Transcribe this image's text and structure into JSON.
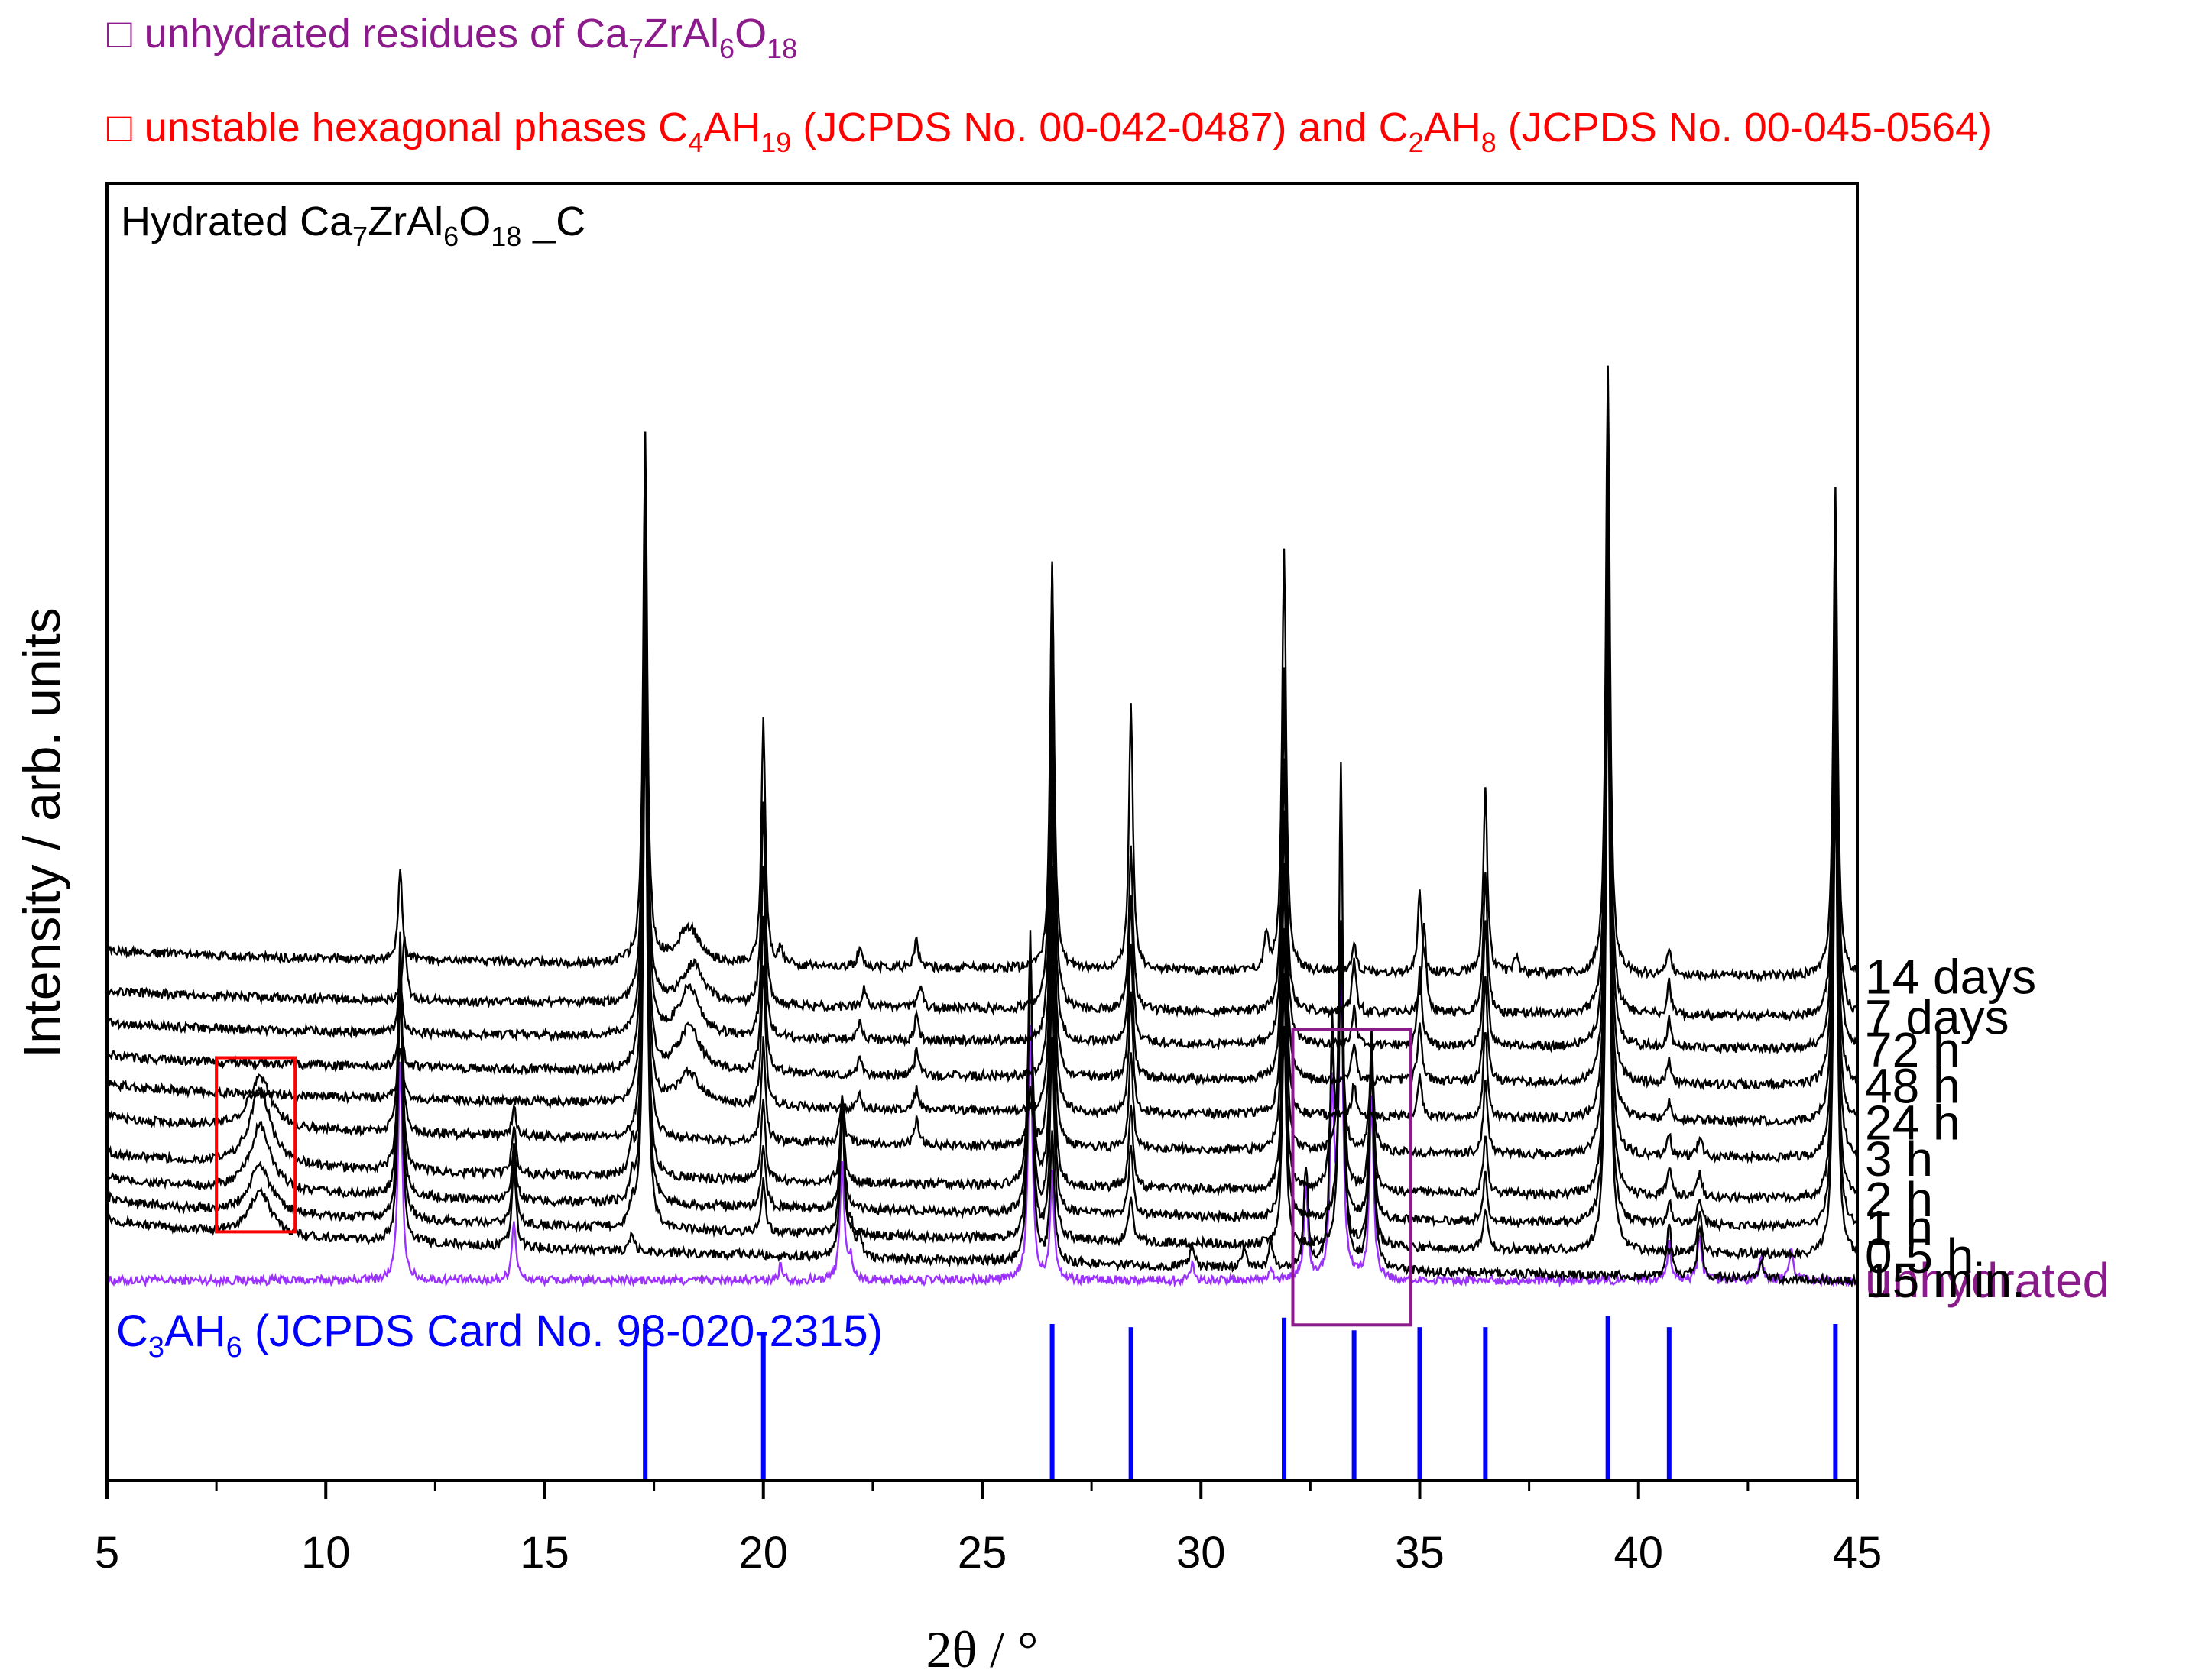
{
  "legend": {
    "purple": {
      "marker": "□",
      "prefix": "unhydrated residues of Ca",
      "sub1": "7",
      "mid1": "ZrAl",
      "sub2": "6",
      "mid2": "O",
      "sub3": "18",
      "color": "#8b1a8b"
    },
    "red": {
      "marker": "□",
      "prefix": "unstable hexagonal phases C",
      "sub1": "4",
      "mid1": "AH",
      "sub2": "19",
      "mid2": " (JCPDS No. 00-042-0487) and C",
      "sub3": "2",
      "mid3": "AH",
      "sub4": "8",
      "suffix": " (JCPDS No. 00-045-0564)",
      "color": "#ff0000"
    }
  },
  "chart_data": {
    "type": "line",
    "title": {
      "prefix": "Hydrated Ca",
      "sub1": "7",
      "mid1": "ZrAl",
      "sub2": "6",
      "mid2": "O",
      "sub3": "18",
      "suffix": " _C"
    },
    "xlabel": "2θ / °",
    "ylabel": "Intensity / arb. units",
    "xlim": [
      5,
      45
    ],
    "xticks": [
      "5",
      "10",
      "15",
      "20",
      "25",
      "30",
      "35",
      "40",
      "45"
    ],
    "reference": {
      "label": {
        "prefix": "C",
        "sub1": "3",
        "mid1": "AH",
        "sub2": "6",
        "suffix": " (JCPDS Card No. 98-020-2315)"
      },
      "color": "#0000ff",
      "lines": [
        {
          "x": 17.3,
          "h": 1.0
        },
        {
          "x": 20.0,
          "h": 0.95
        },
        {
          "x": 26.6,
          "h": 1.0
        },
        {
          "x": 28.4,
          "h": 0.98
        },
        {
          "x": 31.9,
          "h": 1.04
        },
        {
          "x": 33.5,
          "h": 0.96
        },
        {
          "x": 35.0,
          "h": 0.98
        },
        {
          "x": 36.5,
          "h": 0.98
        },
        {
          "x": 39.3,
          "h": 1.05
        },
        {
          "x": 40.7,
          "h": 0.98
        },
        {
          "x": 44.5,
          "h": 1.0
        }
      ]
    },
    "series": [
      {
        "name": "unhydrated",
        "color": "#9b30ff",
        "baseline": [
          0.0,
          0.0
        ],
        "peaks": [
          {
            "x": 11.7,
            "h": 5.5
          },
          {
            "x": 14.3,
            "h": 1.5
          },
          {
            "x": 20.4,
            "h": 0.4
          },
          {
            "x": 21.8,
            "h": 3.0
          },
          {
            "x": 22.0,
            "h": 0.5
          },
          {
            "x": 26.1,
            "h": 6.3
          },
          {
            "x": 26.6,
            "h": 2.6
          },
          {
            "x": 29.8,
            "h": 0.4
          },
          {
            "x": 31.6,
            "h": 0.3
          },
          {
            "x": 32.4,
            "h": 2.2
          },
          {
            "x": 33.0,
            "h": 4.5
          },
          {
            "x": 33.2,
            "h": 7.5
          },
          {
            "x": 33.9,
            "h": 4.4
          },
          {
            "x": 40.7,
            "h": 0.9
          },
          {
            "x": 41.4,
            "h": 1.1
          },
          {
            "x": 42.8,
            "h": 0.6
          },
          {
            "x": 43.5,
            "h": 0.8
          }
        ]
      },
      {
        "name": "15 min.",
        "color": "#000000",
        "baseline": [
          1.6,
          0.0
        ],
        "peaks": [
          {
            "x": 8.5,
            "h": 1.1
          },
          {
            "x": 11.7,
            "h": 6.5
          },
          {
            "x": 14.3,
            "h": 2.0
          },
          {
            "x": 17.0,
            "h": 0.4
          },
          {
            "x": 21.8,
            "h": 3.8
          },
          {
            "x": 22.0,
            "h": 0.8
          },
          {
            "x": 22.2,
            "h": 0.6
          },
          {
            "x": 26.1,
            "h": 8.0
          },
          {
            "x": 26.6,
            "h": 3.2
          },
          {
            "x": 29.8,
            "h": 0.6
          },
          {
            "x": 31.0,
            "h": 0.5
          },
          {
            "x": 31.6,
            "h": 0.6
          },
          {
            "x": 32.4,
            "h": 2.5
          },
          {
            "x": 33.0,
            "h": 5.5
          },
          {
            "x": 33.2,
            "h": 12.0
          },
          {
            "x": 33.9,
            "h": 6.0
          },
          {
            "x": 40.7,
            "h": 1.4
          },
          {
            "x": 41.4,
            "h": 1.3
          },
          {
            "x": 42.8,
            "h": 0.5
          }
        ]
      },
      {
        "name": "0.5 h",
        "color": "#000000",
        "baseline": [
          2.1,
          0.6
        ],
        "peaks": [
          {
            "x": 8.5,
            "h": 1.2
          },
          {
            "x": 11.7,
            "h": 7.0
          },
          {
            "x": 14.3,
            "h": 1.8
          },
          {
            "x": 17.0,
            "h": 0.5
          },
          {
            "x": 17.3,
            "h": 13.0
          },
          {
            "x": 20.0,
            "h": 1.3
          },
          {
            "x": 21.8,
            "h": 3.3
          },
          {
            "x": 26.1,
            "h": 7.5
          },
          {
            "x": 26.6,
            "h": 5.0
          },
          {
            "x": 28.4,
            "h": 1.2
          },
          {
            "x": 31.9,
            "h": 5.5
          },
          {
            "x": 33.2,
            "h": 8.0
          },
          {
            "x": 33.9,
            "h": 4.5
          },
          {
            "x": 36.5,
            "h": 1.0
          },
          {
            "x": 39.3,
            "h": 15.0
          },
          {
            "x": 41.4,
            "h": 1.0
          },
          {
            "x": 44.5,
            "h": 12.0
          }
        ]
      },
      {
        "name": "1 h",
        "color": "#000000",
        "baseline": [
          2.6,
          1.3
        ],
        "peaks": [
          {
            "x": 8.5,
            "h": 1.6
          },
          {
            "x": 11.7,
            "h": 6.5
          },
          {
            "x": 14.3,
            "h": 1.5
          },
          {
            "x": 17.0,
            "h": 0.6
          },
          {
            "x": 17.3,
            "h": 13.0
          },
          {
            "x": 20.0,
            "h": 1.6
          },
          {
            "x": 21.8,
            "h": 2.5
          },
          {
            "x": 26.1,
            "h": 6.5
          },
          {
            "x": 26.6,
            "h": 6.0
          },
          {
            "x": 28.4,
            "h": 1.8
          },
          {
            "x": 31.9,
            "h": 6.0
          },
          {
            "x": 33.2,
            "h": 7.0
          },
          {
            "x": 33.9,
            "h": 4.0
          },
          {
            "x": 36.5,
            "h": 1.2
          },
          {
            "x": 39.3,
            "h": 15.0
          },
          {
            "x": 40.7,
            "h": 0.6
          },
          {
            "x": 41.4,
            "h": 0.7
          },
          {
            "x": 44.5,
            "h": 12.0
          }
        ]
      },
      {
        "name": "2 h",
        "color": "#000000",
        "baseline": [
          3.2,
          2.0
        ],
        "peaks": [
          {
            "x": 8.5,
            "h": 1.9
          },
          {
            "x": 11.7,
            "h": 5.5
          },
          {
            "x": 14.3,
            "h": 1.2
          },
          {
            "x": 17.0,
            "h": 0.7
          },
          {
            "x": 17.3,
            "h": 13.0
          },
          {
            "x": 20.0,
            "h": 2.0
          },
          {
            "x": 21.8,
            "h": 1.9
          },
          {
            "x": 26.1,
            "h": 6.0
          },
          {
            "x": 26.6,
            "h": 6.5
          },
          {
            "x": 28.4,
            "h": 2.1
          },
          {
            "x": 31.9,
            "h": 6.5
          },
          {
            "x": 33.0,
            "h": 3.0
          },
          {
            "x": 33.2,
            "h": 6.5
          },
          {
            "x": 33.9,
            "h": 3.5
          },
          {
            "x": 36.5,
            "h": 1.5
          },
          {
            "x": 39.3,
            "h": 15.0
          },
          {
            "x": 40.7,
            "h": 0.7
          },
          {
            "x": 41.4,
            "h": 0.6
          },
          {
            "x": 44.5,
            "h": 12.0
          }
        ]
      },
      {
        "name": "3 h",
        "color": "#000000",
        "baseline": [
          4.1,
          3.0
        ],
        "peaks": [
          {
            "x": 8.5,
            "h": 1.3
          },
          {
            "x": 11.7,
            "h": 4.3
          },
          {
            "x": 14.3,
            "h": 0.7
          },
          {
            "x": 17.3,
            "h": 13.0
          },
          {
            "x": 20.0,
            "h": 2.5
          },
          {
            "x": 21.8,
            "h": 1.2
          },
          {
            "x": 23.5,
            "h": 0.6
          },
          {
            "x": 26.1,
            "h": 1.5
          },
          {
            "x": 26.6,
            "h": 7.0
          },
          {
            "x": 28.4,
            "h": 2.4
          },
          {
            "x": 31.9,
            "h": 7.0
          },
          {
            "x": 33.2,
            "h": 5.0
          },
          {
            "x": 33.9,
            "h": 2.5
          },
          {
            "x": 36.5,
            "h": 1.8
          },
          {
            "x": 39.3,
            "h": 15.0
          },
          {
            "x": 40.7,
            "h": 0.5
          },
          {
            "x": 41.4,
            "h": 0.5
          },
          {
            "x": 44.5,
            "h": 12.0
          }
        ]
      },
      {
        "name": "24 h",
        "color": "#000000",
        "baseline": [
          4.9,
          3.9
        ],
        "peaks": [
          {
            "x": 11.7,
            "h": 1.3
          },
          {
            "x": 17.3,
            "h": 13.0
          },
          {
            "x": 18.3,
            "h": 0.8
          },
          {
            "x": 20.0,
            "h": 3.5
          },
          {
            "x": 22.2,
            "h": 0.4
          },
          {
            "x": 23.5,
            "h": 0.5
          },
          {
            "x": 26.6,
            "h": 8.0
          },
          {
            "x": 28.4,
            "h": 3.0
          },
          {
            "x": 31.9,
            "h": 7.5
          },
          {
            "x": 33.5,
            "h": 0.8
          },
          {
            "x": 35.0,
            "h": 1.0
          },
          {
            "x": 36.5,
            "h": 2.2
          },
          {
            "x": 39.3,
            "h": 15.0
          },
          {
            "x": 40.7,
            "h": 0.5
          },
          {
            "x": 44.5,
            "h": 12.0
          }
        ]
      },
      {
        "name": "48 h",
        "color": "#000000",
        "baseline": [
          5.6,
          4.8
        ],
        "peaks": [
          {
            "x": 11.7,
            "h": 1.4
          },
          {
            "x": 17.3,
            "h": 13.0
          },
          {
            "x": 18.3,
            "h": 1.1
          },
          {
            "x": 20.0,
            "h": 3.8
          },
          {
            "x": 22.2,
            "h": 0.4
          },
          {
            "x": 23.5,
            "h": 0.6
          },
          {
            "x": 26.6,
            "h": 8.5
          },
          {
            "x": 28.4,
            "h": 3.3
          },
          {
            "x": 31.9,
            "h": 8.0
          },
          {
            "x": 33.5,
            "h": 1.0
          },
          {
            "x": 35.0,
            "h": 1.5
          },
          {
            "x": 36.5,
            "h": 2.6
          },
          {
            "x": 39.3,
            "h": 15.0
          },
          {
            "x": 40.7,
            "h": 0.6
          },
          {
            "x": 44.5,
            "h": 12.0
          }
        ]
      },
      {
        "name": "72 h",
        "color": "#000000",
        "baseline": [
          6.4,
          5.7
        ],
        "peaks": [
          {
            "x": 11.7,
            "h": 1.3
          },
          {
            "x": 17.3,
            "h": 13.0
          },
          {
            "x": 18.3,
            "h": 1.2
          },
          {
            "x": 20.0,
            "h": 4.3
          },
          {
            "x": 22.2,
            "h": 0.4
          },
          {
            "x": 23.5,
            "h": 0.6
          },
          {
            "x": 26.6,
            "h": 9.5
          },
          {
            "x": 28.4,
            "h": 3.6
          },
          {
            "x": 31.9,
            "h": 8.5
          },
          {
            "x": 33.5,
            "h": 0.9
          },
          {
            "x": 35.0,
            "h": 1.9
          },
          {
            "x": 36.5,
            "h": 3.0
          },
          {
            "x": 39.3,
            "h": 15.0
          },
          {
            "x": 40.7,
            "h": 0.7
          },
          {
            "x": 44.5,
            "h": 12.0
          }
        ]
      },
      {
        "name": "7 days",
        "color": "#000000",
        "baseline": [
          7.2,
          6.5
        ],
        "peaks": [
          {
            "x": 11.8,
            "h": 1.6
          },
          {
            "x": 17.3,
            "h": 13.0
          },
          {
            "x": 18.4,
            "h": 1.0
          },
          {
            "x": 20.0,
            "h": 5.0
          },
          {
            "x": 22.3,
            "h": 0.5
          },
          {
            "x": 23.6,
            "h": 0.6
          },
          {
            "x": 26.6,
            "h": 11.0
          },
          {
            "x": 28.4,
            "h": 4.0
          },
          {
            "x": 31.9,
            "h": 8.5
          },
          {
            "x": 33.5,
            "h": 1.3
          },
          {
            "x": 35.1,
            "h": 2.3
          },
          {
            "x": 36.5,
            "h": 3.5
          },
          {
            "x": 39.3,
            "h": 15.0
          },
          {
            "x": 40.7,
            "h": 0.8
          },
          {
            "x": 44.5,
            "h": 12.0
          }
        ]
      },
      {
        "name": "14 days",
        "color": "#000000",
        "baseline": [
          8.2,
          7.5
        ],
        "peaks": [
          {
            "x": 11.7,
            "h": 2.2
          },
          {
            "x": 17.3,
            "h": 13.0
          },
          {
            "x": 18.3,
            "h": 0.9
          },
          {
            "x": 20.0,
            "h": 6.0
          },
          {
            "x": 20.4,
            "h": 0.4
          },
          {
            "x": 22.2,
            "h": 0.5
          },
          {
            "x": 23.5,
            "h": 0.7
          },
          {
            "x": 26.6,
            "h": 10.0
          },
          {
            "x": 28.4,
            "h": 6.5
          },
          {
            "x": 31.5,
            "h": 0.9
          },
          {
            "x": 31.9,
            "h": 10.5
          },
          {
            "x": 33.5,
            "h": 0.7
          },
          {
            "x": 35.0,
            "h": 2.0
          },
          {
            "x": 36.5,
            "h": 4.5
          },
          {
            "x": 37.2,
            "h": 0.4
          },
          {
            "x": 39.3,
            "h": 15.0
          },
          {
            "x": 40.7,
            "h": 0.7
          },
          {
            "x": 44.5,
            "h": 12.0
          }
        ]
      }
    ],
    "highlight_boxes": [
      {
        "x": [
          7.5,
          9.3
        ],
        "y": [
          1.2,
          5.5
        ],
        "color": "#ff0000"
      },
      {
        "x": [
          32.1,
          34.8
        ],
        "y": [
          -1.1,
          6.2
        ],
        "color": "#8b1a8b"
      }
    ],
    "grid": false,
    "legend_position": "top-left, outside plot"
  }
}
